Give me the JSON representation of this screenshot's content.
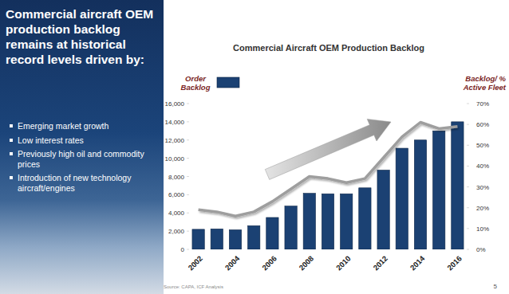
{
  "slide": {
    "heading": "Commercial aircraft OEM production backlog remains at historical record levels driven by:",
    "bullets": [
      "Emerging market growth",
      "Low interest rates",
      "Previously high oil and commodity prices",
      "Introduction of new technology aircraft/engines"
    ],
    "source": "Source: CAPA, ICF Analysis",
    "page_number": "5"
  },
  "chart_data": {
    "type": "bar",
    "title": "Commercial Aircraft OEM Production Backlog",
    "categories": [
      "2002",
      null,
      "2004",
      null,
      "2006",
      null,
      "2008",
      null,
      "2010",
      null,
      "2012",
      null,
      "2014",
      null,
      "2016"
    ],
    "series": [
      {
        "name": "Order Backlog",
        "type": "bar",
        "color": "#1b4173",
        "values": [
          2200,
          2250,
          2150,
          2600,
          3500,
          4750,
          6150,
          6100,
          6100,
          6750,
          8700,
          11100,
          12000,
          13000,
          14000
        ]
      },
      {
        "name": "Backlog/ % Active Fleet",
        "type": "line",
        "axis": "y2",
        "color": "#9e9e9e",
        "values": [
          19,
          18,
          16,
          18,
          23,
          29,
          35,
          34,
          32,
          34,
          44,
          54,
          61,
          58,
          59
        ]
      }
    ],
    "ylim": [
      0,
      16000
    ],
    "yticks": [
      0,
      {
        "value": 2000,
        "label": "2,000"
      },
      {
        "value": 4000,
        "label": "4,000"
      },
      {
        "value": 6000,
        "label": "6,000"
      },
      {
        "value": 8000,
        "label": "8,000"
      },
      {
        "value": 10000,
        "label": "10,000"
      },
      {
        "value": 12000,
        "label": "12,000"
      },
      {
        "value": 14000,
        "label": "14,000"
      },
      {
        "value": 16000,
        "label": "16,000"
      }
    ],
    "y2lim": [
      0,
      70
    ],
    "y2ticks": [
      {
        "value": 0,
        "label": "0%"
      },
      {
        "value": 10,
        "label": "10%"
      },
      {
        "value": 20,
        "label": "20%"
      },
      {
        "value": 30,
        "label": "30%"
      },
      {
        "value": 40,
        "label": "40%"
      },
      {
        "value": 50,
        "label": "50%"
      },
      {
        "value": 60,
        "label": "60%"
      },
      {
        "value": 70,
        "label": "70%"
      }
    ],
    "grid": false
  }
}
